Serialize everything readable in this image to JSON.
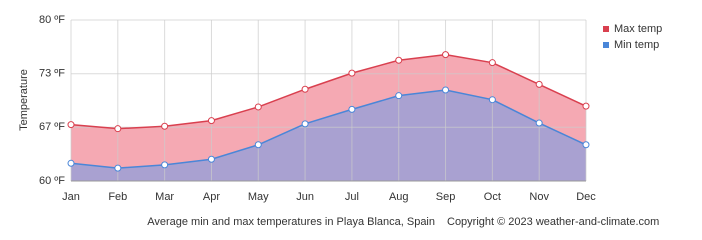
{
  "chart_data": {
    "type": "area",
    "y_label": "Temperature",
    "caption": "Average min and max temperatures in Playa Blanca, Spain",
    "copyright": "Copyright © 2023  weather-and-climate.com",
    "categories": [
      "Jan",
      "Feb",
      "Mar",
      "Apr",
      "May",
      "Jun",
      "Jul",
      "Aug",
      "Sep",
      "Oct",
      "Nov",
      "Dec"
    ],
    "series": [
      {
        "name": "Max temp",
        "color": "#d9404f",
        "fill": "#f5a9b3",
        "values": [
          67.0,
          66.5,
          66.8,
          67.5,
          69.2,
          71.4,
          73.4,
          75.0,
          75.7,
          74.7,
          72.0,
          69.3
        ]
      },
      {
        "name": "Min temp",
        "color": "#4a86d8",
        "fill": "#a9a1d1",
        "values": [
          62.2,
          61.6,
          62.0,
          62.7,
          64.5,
          67.1,
          68.9,
          70.6,
          71.3,
          70.1,
          67.2,
          64.5
        ]
      }
    ],
    "ylim": [
      60,
      80
    ],
    "yticks": [
      {
        "value": 60,
        "label": "60 ºF"
      },
      {
        "value": 66.67,
        "label": "67 ºF"
      },
      {
        "value": 73.33,
        "label": "73 ºF"
      },
      {
        "value": 80,
        "label": "80 ºF"
      }
    ],
    "grid": true,
    "legend": "right"
  }
}
